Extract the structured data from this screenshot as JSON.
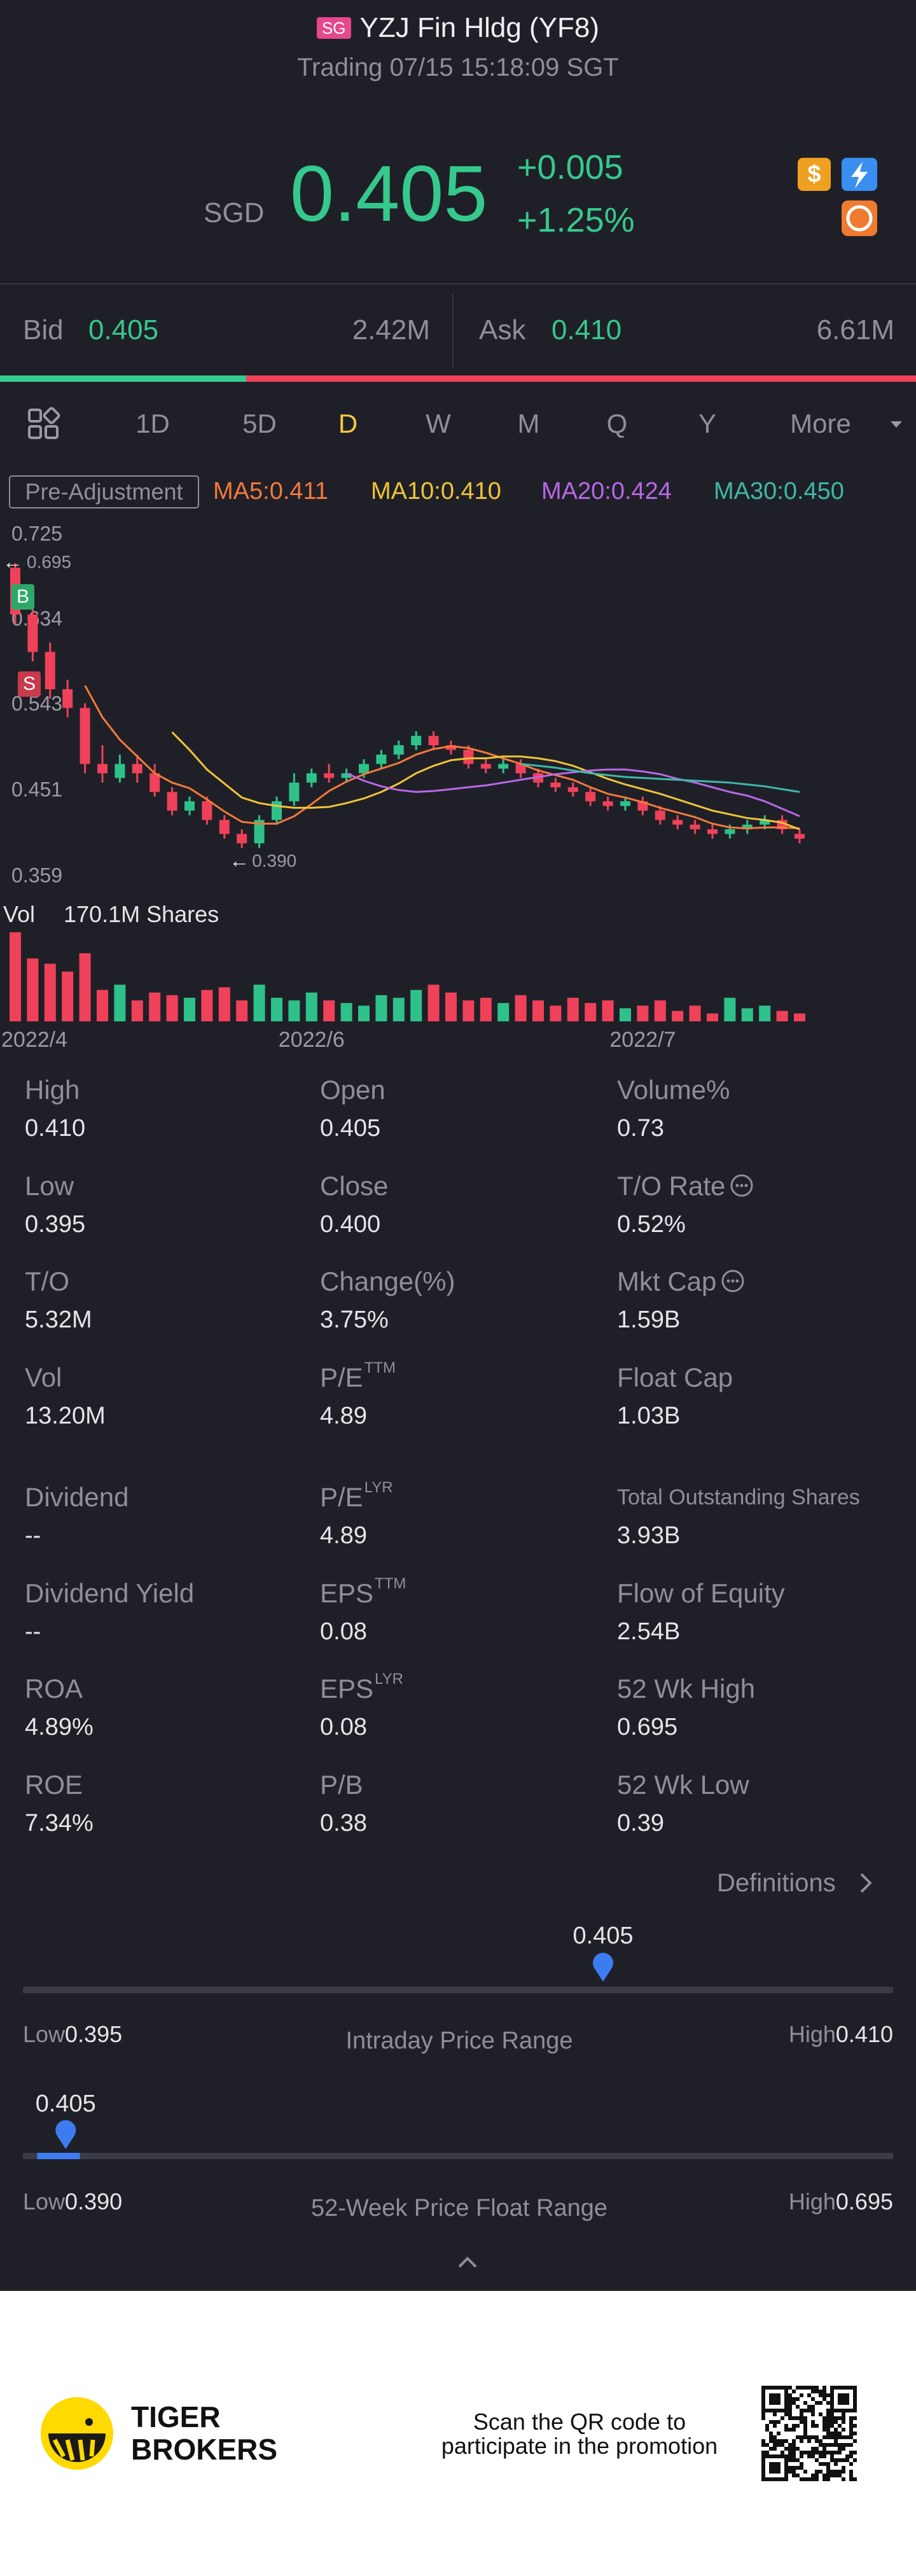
{
  "header": {
    "badge": "SG",
    "title": "YZJ Fin Hldg (YF8)",
    "subtitle": "Trading 07/15 15:18:09 SGT"
  },
  "quote": {
    "currency": "SGD",
    "price": "0.405",
    "change": "+0.005",
    "change_pct": "+1.25%"
  },
  "book": {
    "bid_label": "Bid",
    "bid": "0.405",
    "bid_size": "2.42M",
    "ask_label": "Ask",
    "ask": "0.410",
    "ask_size": "6.61M"
  },
  "tabs": [
    "1D",
    "5D",
    "D",
    "W",
    "M",
    "Q",
    "Y",
    "More"
  ],
  "active_tab": "D",
  "chart_data": {
    "type": "candlestick",
    "adjustment": "Pre-Adjustment",
    "up_color": "#2ec28a",
    "down_color": "#f0415a",
    "ylim": [
      0.359,
      0.725
    ],
    "yticks": [
      0.725,
      0.634,
      0.543,
      0.451,
      0.359
    ],
    "grid": false,
    "categories": [
      "2022/4",
      null,
      null,
      null,
      null,
      null,
      null,
      null,
      null,
      null,
      null,
      null,
      null,
      null,
      null,
      null,
      null,
      "2022/6",
      null,
      null,
      null,
      null,
      null,
      null,
      null,
      null,
      null,
      null,
      null,
      null,
      null,
      null,
      null,
      null,
      null,
      null,
      "2022/7",
      null,
      null,
      null,
      null,
      null,
      null,
      null,
      null,
      null
    ],
    "open": [
      0.69,
      0.64,
      0.6,
      0.56,
      0.54,
      0.48,
      0.465,
      0.48,
      0.47,
      0.45,
      0.43,
      0.44,
      0.42,
      0.405,
      0.395,
      0.42,
      0.44,
      0.46,
      0.47,
      0.465,
      0.47,
      0.48,
      0.49,
      0.5,
      0.51,
      0.5,
      0.495,
      0.48,
      0.475,
      0.48,
      0.47,
      0.46,
      0.455,
      0.45,
      0.44,
      0.435,
      0.44,
      0.43,
      0.42,
      0.415,
      0.41,
      0.405,
      0.41,
      0.415,
      0.42,
      0.405
    ],
    "close": [
      0.64,
      0.6,
      0.56,
      0.54,
      0.48,
      0.47,
      0.48,
      0.47,
      0.45,
      0.43,
      0.44,
      0.42,
      0.405,
      0.395,
      0.42,
      0.44,
      0.46,
      0.47,
      0.465,
      0.47,
      0.48,
      0.49,
      0.5,
      0.51,
      0.5,
      0.495,
      0.48,
      0.475,
      0.48,
      0.47,
      0.46,
      0.455,
      0.45,
      0.44,
      0.435,
      0.44,
      0.43,
      0.42,
      0.415,
      0.41,
      0.405,
      0.41,
      0.415,
      0.42,
      0.41,
      0.4
    ],
    "high": [
      0.695,
      0.65,
      0.61,
      0.57,
      0.545,
      0.5,
      0.49,
      0.49,
      0.48,
      0.455,
      0.445,
      0.445,
      0.425,
      0.41,
      0.425,
      0.445,
      0.47,
      0.475,
      0.48,
      0.475,
      0.485,
      0.495,
      0.505,
      0.515,
      0.515,
      0.505,
      0.5,
      0.485,
      0.485,
      0.485,
      0.475,
      0.465,
      0.46,
      0.455,
      0.445,
      0.445,
      0.445,
      0.435,
      0.425,
      0.42,
      0.415,
      0.415,
      0.42,
      0.425,
      0.425,
      0.41
    ],
    "low": [
      0.63,
      0.59,
      0.55,
      0.53,
      0.47,
      0.46,
      0.46,
      0.46,
      0.445,
      0.425,
      0.425,
      0.415,
      0.4,
      0.39,
      0.39,
      0.415,
      0.435,
      0.455,
      0.46,
      0.46,
      0.465,
      0.475,
      0.485,
      0.495,
      0.495,
      0.49,
      0.475,
      0.47,
      0.47,
      0.465,
      0.455,
      0.45,
      0.445,
      0.435,
      0.43,
      0.43,
      0.425,
      0.415,
      0.41,
      0.405,
      0.4,
      0.4,
      0.405,
      0.41,
      0.405,
      0.395
    ],
    "ma": [
      {
        "name": "MA5:0.411",
        "color": "#f5793b",
        "values": [
          null,
          null,
          null,
          null,
          0.564,
          0.53,
          0.506,
          0.488,
          0.47,
          0.46,
          0.454,
          0.442,
          0.429,
          0.418,
          0.416,
          0.416,
          0.424,
          0.437,
          0.451,
          0.461,
          0.469,
          0.475,
          0.481,
          0.49,
          0.496,
          0.499,
          0.497,
          0.492,
          0.486,
          0.48,
          0.473,
          0.468,
          0.463,
          0.455,
          0.448,
          0.444,
          0.439,
          0.433,
          0.428,
          0.423,
          0.416,
          0.412,
          0.411,
          0.412,
          0.412,
          0.411
        ]
      },
      {
        "name": "MA10:0.410",
        "color": "#f0c43a",
        "values": [
          null,
          null,
          null,
          null,
          null,
          null,
          null,
          null,
          null,
          0.514,
          0.495,
          0.474,
          0.459,
          0.444,
          0.438,
          0.435,
          0.433,
          0.433,
          0.434,
          0.438,
          0.443,
          0.45,
          0.459,
          0.47,
          0.478,
          0.484,
          0.486,
          0.486,
          0.488,
          0.488,
          0.486,
          0.483,
          0.478,
          0.471,
          0.464,
          0.458,
          0.453,
          0.448,
          0.442,
          0.436,
          0.43,
          0.426,
          0.422,
          0.42,
          0.417,
          0.41
        ]
      },
      {
        "name": "MA20:0.424",
        "color": "#b868e8",
        "values": [
          null,
          null,
          null,
          null,
          null,
          null,
          null,
          null,
          null,
          null,
          null,
          null,
          null,
          null,
          null,
          null,
          null,
          null,
          null,
          0.47,
          0.462,
          0.456,
          0.452,
          0.45,
          0.451,
          0.453,
          0.455,
          0.457,
          0.46,
          0.463,
          0.466,
          0.469,
          0.471,
          0.473,
          0.474,
          0.474,
          0.472,
          0.469,
          0.464,
          0.46,
          0.455,
          0.45,
          0.446,
          0.44,
          0.432,
          0.424
        ]
      },
      {
        "name": "MA30:0.450",
        "color": "#3db9a8",
        "values": [
          null,
          null,
          null,
          null,
          null,
          null,
          null,
          null,
          null,
          null,
          null,
          null,
          null,
          null,
          null,
          null,
          null,
          null,
          null,
          null,
          null,
          null,
          null,
          null,
          null,
          null,
          null,
          null,
          null,
          0.48,
          0.478,
          0.476,
          0.473,
          0.47,
          0.468,
          0.466,
          0.465,
          0.464,
          0.463,
          0.462,
          0.461,
          0.46,
          0.458,
          0.456,
          0.453,
          0.45
        ]
      }
    ],
    "max_label": 0.695,
    "min_label": {
      "value": 0.39,
      "label": "0.390"
    },
    "trade_marks": [
      "B",
      "S"
    ],
    "volume_label": "Vol",
    "volume_text": "170.1M Shares",
    "volume": [
      170,
      120,
      110,
      95,
      130,
      60,
      70,
      40,
      55,
      50,
      45,
      60,
      65,
      40,
      70,
      45,
      40,
      55,
      40,
      35,
      30,
      50,
      45,
      60,
      70,
      55,
      40,
      45,
      35,
      50,
      40,
      30,
      45,
      35,
      40,
      25,
      30,
      40,
      20,
      30,
      15,
      45,
      25,
      30,
      20,
      15
    ]
  },
  "stats": {
    "rows": [
      [
        {
          "label": "High",
          "value": "0.410"
        },
        {
          "label": "Open",
          "value": "0.405"
        },
        {
          "label": "Volume%",
          "value": "0.73"
        }
      ],
      [
        {
          "label": "Low",
          "value": "0.395"
        },
        {
          "label": "Close",
          "value": "0.400"
        },
        {
          "label": "T/O Rate",
          "value": "0.52%",
          "info": true
        }
      ],
      [
        {
          "label": "T/O",
          "value": "5.32M"
        },
        {
          "label": "Change(%)",
          "value": "3.75%"
        },
        {
          "label": "Mkt Cap",
          "value": "1.59B",
          "info": true
        }
      ],
      [
        {
          "label": "Vol",
          "value": "13.20M"
        },
        {
          "label": "P/E",
          "sup": "TTM",
          "value": "4.89"
        },
        {
          "label": "Float Cap",
          "value": "1.03B"
        }
      ],
      [
        {
          "label": "Dividend",
          "value": "--"
        },
        {
          "label": "P/E",
          "sup": "LYR",
          "value": "4.89"
        },
        {
          "label": "Total Outstanding Shares",
          "value": "3.93B"
        }
      ],
      [
        {
          "label": "Dividend Yield",
          "value": "--"
        },
        {
          "label": "EPS",
          "sup": "TTM",
          "value": "0.08"
        },
        {
          "label": "Flow of Equity",
          "value": "2.54B"
        }
      ],
      [
        {
          "label": "ROA",
          "value": "4.89%"
        },
        {
          "label": "EPS",
          "sup": "LYR",
          "value": "0.08"
        },
        {
          "label": "52 Wk High",
          "value": "0.695"
        }
      ],
      [
        {
          "label": "ROE",
          "value": "7.34%"
        },
        {
          "label": "P/B",
          "value": "0.38"
        },
        {
          "label": "52 Wk Low",
          "value": "0.39"
        }
      ]
    ],
    "definitions": "Definitions"
  },
  "ranges": {
    "intraday": {
      "current": 0.405,
      "low_label": "Low",
      "low": 0.395,
      "high_label": "High",
      "high": {
        "value": 0.41,
        "label": "0.410"
      },
      "title": "Intraday Price Range"
    },
    "week52": {
      "current": 0.405,
      "low_label": "Low",
      "low": {
        "value": 0.39,
        "label": "0.390"
      },
      "high_label": "High",
      "high": 0.695,
      "title": "52-Week Price Float Range"
    }
  },
  "footer": {
    "brand": [
      "TIGER",
      "BROKERS"
    ],
    "promo": [
      "Scan the QR code to",
      "participate in the promotion"
    ]
  }
}
